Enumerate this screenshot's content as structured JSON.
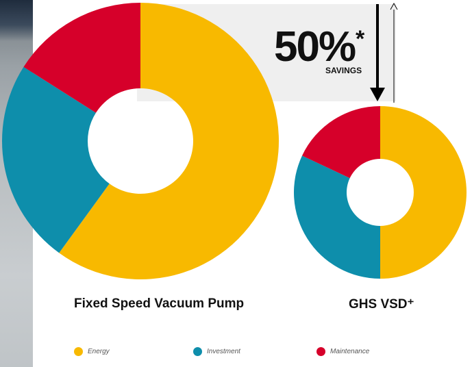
{
  "savings": {
    "value": "50%",
    "asterisk": "*",
    "label": "SAVINGS"
  },
  "colors": {
    "energy": "#f8b900",
    "investment": "#0e8eab",
    "maintenance": "#d6002a"
  },
  "legend": [
    {
      "label": "Energy",
      "color": "#f8b900"
    },
    {
      "label": "Investment",
      "color": "#0e8eab"
    },
    {
      "label": "Maintenance",
      "color": "#d6002a"
    }
  ],
  "chart_data": [
    {
      "type": "pie",
      "variant": "donut",
      "title": "Fixed Speed Vacuum Pump",
      "categories": [
        "Energy",
        "Investment",
        "Maintenance"
      ],
      "values": [
        60,
        24,
        16
      ],
      "legend_position": "bottom"
    },
    {
      "type": "pie",
      "variant": "donut",
      "title": "GHS VSD⁺",
      "categories": [
        "Energy",
        "Investment",
        "Maintenance"
      ],
      "values": [
        50,
        32,
        18
      ],
      "legend_position": "bottom"
    }
  ]
}
